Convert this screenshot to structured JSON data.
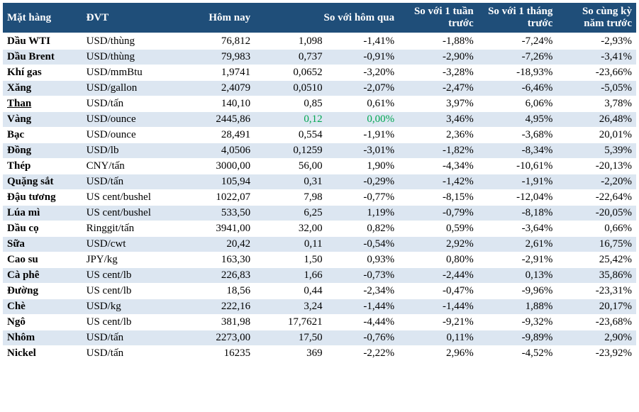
{
  "header": {
    "col1": "Mặt hàng",
    "col2": "ĐVT",
    "col3": "Hôm nay",
    "col4_span": "So với hôm qua",
    "col6": "So với 1 tuần trước",
    "col7": "So với 1 tháng trước",
    "col8": "So cùng kỳ năm trước"
  },
  "rows": [
    {
      "name": "Dầu WTI",
      "unit": "USD/thùng",
      "today": "76,812",
      "d_abs": "1,098",
      "d_pct": "-1,41%",
      "w": "-1,88%",
      "m": "-7,24%",
      "y": "-2,93%"
    },
    {
      "name": "Dầu Brent",
      "unit": "USD/thùng",
      "today": "79,983",
      "d_abs": "0,737",
      "d_pct": "-0,91%",
      "w": "-2,90%",
      "m": "-7,26%",
      "y": "-3,41%"
    },
    {
      "name": "Khí gas",
      "unit": "USD/mmBtu",
      "today": "1,9741",
      "d_abs": "0,0652",
      "d_pct": "-3,20%",
      "w": "-3,28%",
      "m": "-18,93%",
      "y": "-23,66%"
    },
    {
      "name": "Xăng",
      "unit": "USD/gallon",
      "today": "2,4079",
      "d_abs": "0,0510",
      "d_pct": "-2,07%",
      "w": "-2,47%",
      "m": "-6,46%",
      "y": "-5,05%"
    },
    {
      "name": "Than",
      "underline": true,
      "unit": "USD/tấn",
      "today": "140,10",
      "d_abs": "0,85",
      "d_pct": "0,61%",
      "w": "3,97%",
      "m": "6,06%",
      "y": "3,78%"
    },
    {
      "name": "Vàng",
      "unit": "USD/ounce",
      "today": "2445,86",
      "d_abs": "0,12",
      "d_abs_green": true,
      "d_pct": "0,00%",
      "d_pct_green": true,
      "w": "3,46%",
      "m": "4,95%",
      "y": "26,48%"
    },
    {
      "name": "Bạc",
      "unit": "USD/ounce",
      "today": "28,491",
      "d_abs": "0,554",
      "d_pct": "-1,91%",
      "w": "2,36%",
      "m": "-3,68%",
      "y": "20,01%"
    },
    {
      "name": "Đồng",
      "unit": "USD/lb",
      "today": "4,0506",
      "d_abs": "0,1259",
      "d_pct": "-3,01%",
      "w": "-1,82%",
      "m": "-8,34%",
      "y": "5,39%"
    },
    {
      "name": "Thép",
      "unit": "CNY/tấn",
      "today": "3000,00",
      "d_abs": "56,00",
      "d_pct": "1,90%",
      "w": "-4,34%",
      "m": "-10,61%",
      "y": "-20,13%"
    },
    {
      "name": "Quặng sắt",
      "unit": "USD/tấn",
      "today": "105,94",
      "d_abs": "0,31",
      "d_pct": "-0,29%",
      "w": "-1,42%",
      "m": "-1,91%",
      "y": "-2,20%"
    },
    {
      "name": "Đậu tương",
      "unit": "US cent/bushel",
      "today": "1022,07",
      "d_abs": "7,98",
      "d_pct": "-0,77%",
      "w": "-8,15%",
      "m": "-12,04%",
      "y": "-22,64%"
    },
    {
      "name": "Lúa mì",
      "unit": "US cent/bushel",
      "today": "533,50",
      "d_abs": "6,25",
      "d_pct": "1,19%",
      "w": "-0,79%",
      "m": "-8,18%",
      "y": "-20,05%"
    },
    {
      "name": "Dầu cọ",
      "unit": "Ringgit/tấn",
      "today": "3941,00",
      "d_abs": "32,00",
      "d_pct": "0,82%",
      "w": "0,59%",
      "m": "-3,64%",
      "y": "0,66%"
    },
    {
      "name": "Sữa",
      "unit": "USD/cwt",
      "today": "20,42",
      "d_abs": "0,11",
      "d_pct": "-0,54%",
      "w": "2,92%",
      "m": "2,61%",
      "y": "16,75%"
    },
    {
      "name": "Cao su",
      "unit": "JPY/kg",
      "today": "163,30",
      "d_abs": "1,50",
      "d_pct": "0,93%",
      "w": "0,80%",
      "m": "-2,91%",
      "y": "25,42%"
    },
    {
      "name": "Cà phê",
      "unit": "US cent/lb",
      "today": "226,83",
      "d_abs": "1,66",
      "d_pct": "-0,73%",
      "w": "-2,44%",
      "m": "0,13%",
      "y": "35,86%"
    },
    {
      "name": "Đường",
      "unit": "US cent/lb",
      "today": "18,56",
      "d_abs": "0,44",
      "d_pct": "-2,34%",
      "w": "-0,47%",
      "m": "-9,96%",
      "y": "-23,31%"
    },
    {
      "name": "Chè",
      "unit": "USD/kg",
      "today": "222,16",
      "d_abs": "3,24",
      "d_pct": "-1,44%",
      "w": "-1,44%",
      "m": "1,88%",
      "y": "20,17%"
    },
    {
      "name": "Ngô",
      "unit": "US cent/lb",
      "today": "381,98",
      "d_abs": "17,7621",
      "d_pct": "-4,44%",
      "w": "-9,21%",
      "m": "-9,32%",
      "y": "-23,68%"
    },
    {
      "name": "Nhôm",
      "unit": "USD/tấn",
      "today": "2273,00",
      "d_abs": "17,50",
      "d_pct": "-0,76%",
      "w": "0,11%",
      "m": "-9,89%",
      "y": "2,90%"
    },
    {
      "name": "Nickel",
      "unit": "USD/tấn",
      "today": "16235",
      "d_abs": "369",
      "d_pct": "-2,22%",
      "w": "2,96%",
      "m": "-4,52%",
      "y": "-23,92%"
    }
  ],
  "colors": {
    "header_bg": "#1f4e79",
    "header_text": "#ffffff",
    "row_even_bg": "#dce6f1",
    "row_odd_bg": "#ffffff",
    "positive_text": "#00a651",
    "default_text": "#000000"
  }
}
